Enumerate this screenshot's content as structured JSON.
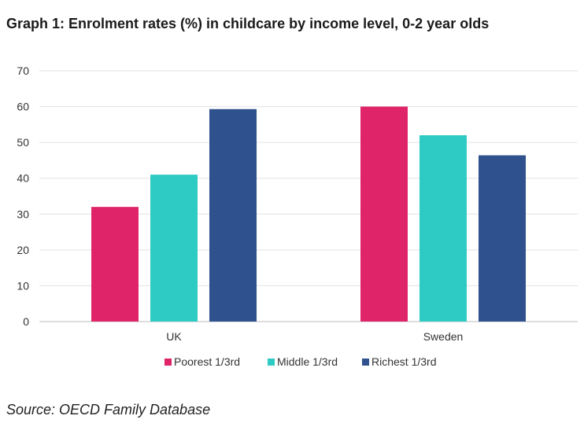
{
  "chart_data": {
    "type": "bar",
    "title": "Graph 1: Enrolment rates (%) in childcare by income level, 0-2 year olds",
    "categories": [
      "UK",
      "Sweden"
    ],
    "series": [
      {
        "name": "Poorest 1/3rd",
        "color": "#e0246a",
        "values": [
          32,
          60
        ]
      },
      {
        "name": "Middle 1/3rd",
        "color": "#2ecac4",
        "values": [
          41,
          52
        ]
      },
      {
        "name": "Richest 1/3rd",
        "color": "#2f528f",
        "values": [
          59.3,
          46.4
        ]
      }
    ],
    "ylim": [
      0,
      70
    ],
    "yticks": [
      0,
      10,
      20,
      30,
      40,
      50,
      60,
      70
    ],
    "grid": true,
    "legend": "bottom",
    "xlabel": "",
    "ylabel": ""
  },
  "source": "Source: OECD Family Database"
}
